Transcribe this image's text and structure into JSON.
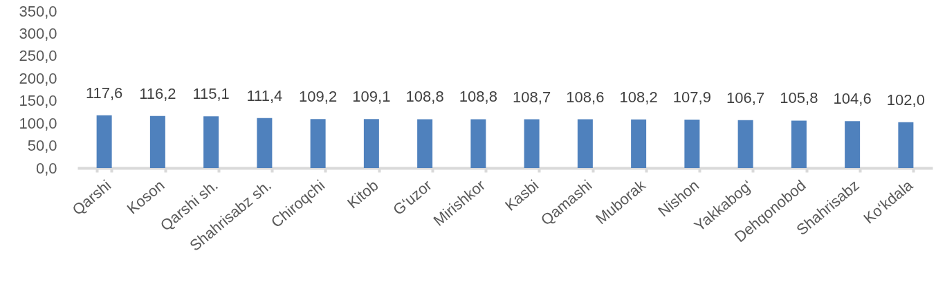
{
  "chart_data": {
    "type": "bar",
    "categories": [
      "Qarshi",
      "Koson",
      "Qarshi sh.",
      "Shahrisabz sh.",
      "Chiroqchi",
      "Kitob",
      "G‘uzor",
      "Mirishkor",
      "Kasbi",
      "Qamashi",
      "Muborak",
      "Nishon",
      "Yakkabog‘",
      "Dehqonobod",
      "Shahrisabz",
      "Ko‘kdala"
    ],
    "values": [
      117.6,
      116.2,
      115.1,
      111.4,
      109.2,
      109.1,
      108.8,
      108.8,
      108.7,
      108.6,
      108.2,
      107.9,
      106.7,
      105.8,
      104.6,
      102.0
    ],
    "value_labels": [
      "117,6",
      "116,2",
      "115,1",
      "111,4",
      "109,2",
      "109,1",
      "108,8",
      "108,8",
      "108,7",
      "108,6",
      "108,2",
      "107,9",
      "106,7",
      "105,8",
      "104,6",
      "102,0"
    ],
    "color": "#4f81bd",
    "ylim": [
      0,
      350
    ],
    "yticks": [
      {
        "value": 0,
        "label": "0,0"
      },
      {
        "value": 50,
        "label": "50,0"
      },
      {
        "value": 100,
        "label": "100,0"
      },
      {
        "value": 150,
        "label": "150,0"
      },
      {
        "value": 200,
        "label": "200,0"
      },
      {
        "value": 250,
        "label": "250,0"
      },
      {
        "value": 300,
        "label": "300,0"
      },
      {
        "value": 350,
        "label": "350,0"
      }
    ],
    "grid": false
  }
}
